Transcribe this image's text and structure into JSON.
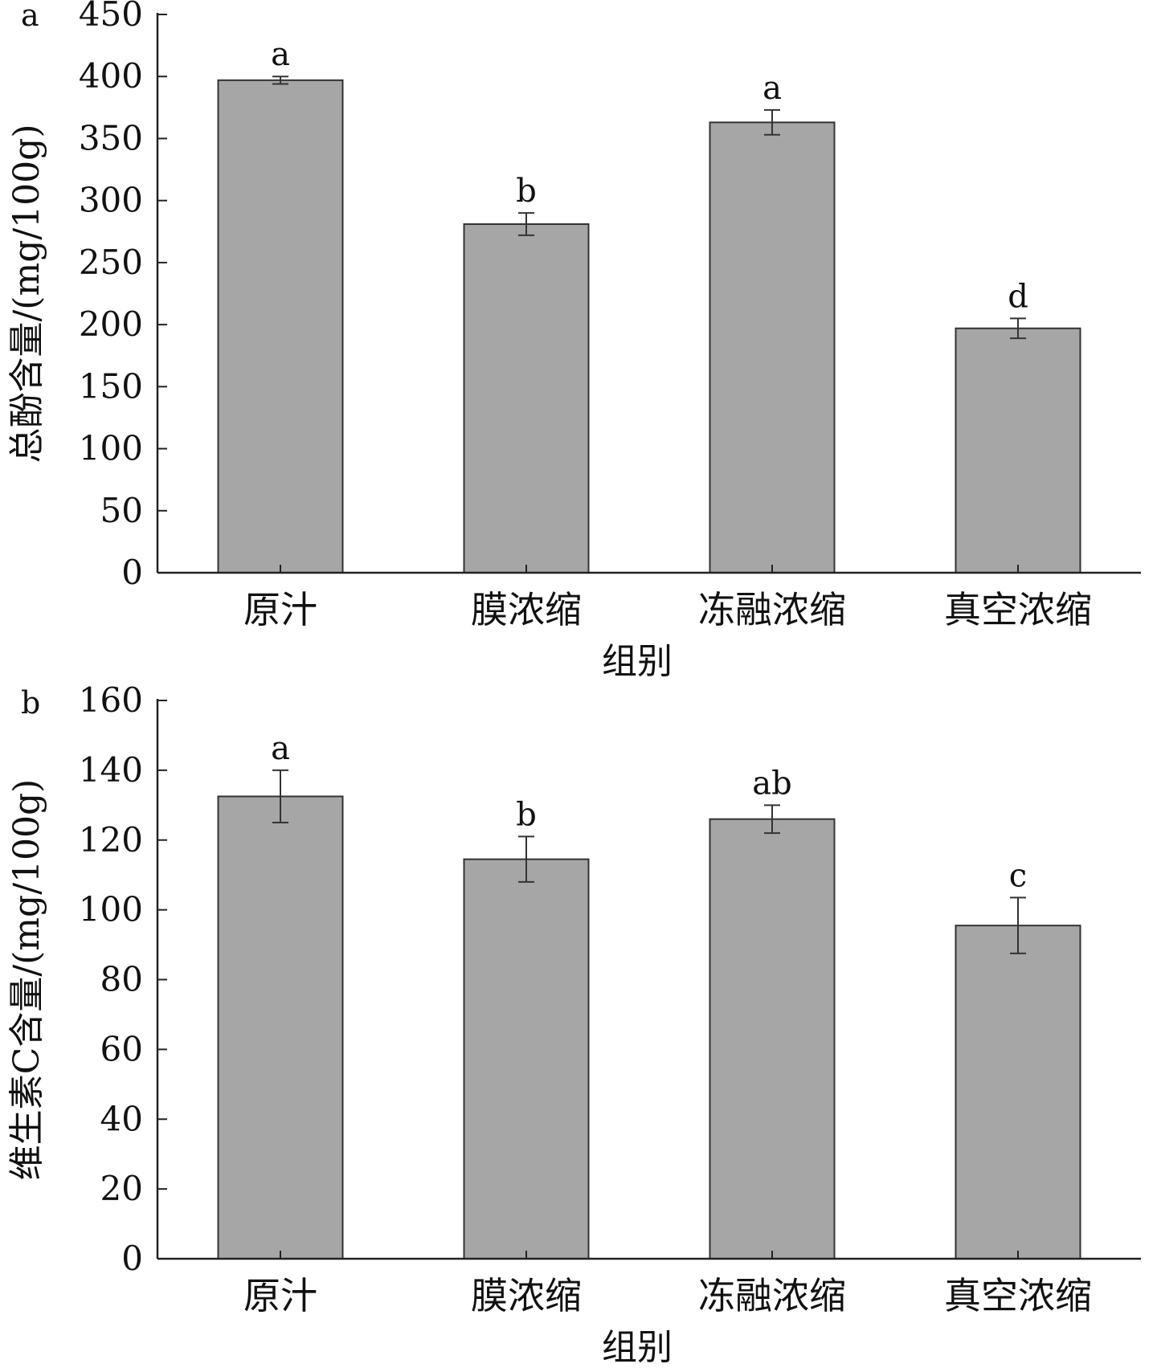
{
  "figure": {
    "bar_color": "#a6a6a6",
    "bar_edge_color": "#333333",
    "axis_color": "#222222"
  },
  "chart_data": [
    {
      "panel_label": "a",
      "type": "bar",
      "categories": [
        "原汁",
        "膜浓缩",
        "冻融浓缩",
        "真空浓缩"
      ],
      "values": [
        397,
        281,
        363,
        197
      ],
      "errors": [
        3,
        9,
        10,
        8
      ],
      "significance": [
        "a",
        "b",
        "a",
        "d"
      ],
      "title": "",
      "xlabel": "组别",
      "ylabel": "总酚含量/(mg/100g)",
      "ylim": [
        0,
        450
      ],
      "yticks": [
        0,
        50,
        100,
        150,
        200,
        250,
        300,
        350,
        400,
        450
      ],
      "grid": false,
      "legend": "none"
    },
    {
      "panel_label": "b",
      "type": "bar",
      "categories": [
        "原汁",
        "膜浓缩",
        "冻融浓缩",
        "真空浓缩"
      ],
      "values": [
        132.5,
        114.5,
        126,
        95.5
      ],
      "errors": [
        7.5,
        6.5,
        4,
        8
      ],
      "significance": [
        "a",
        "b",
        "ab",
        "c"
      ],
      "title": "",
      "xlabel": "组别",
      "ylabel": "维生素C含量/(mg/100g)",
      "ylim": [
        0,
        160
      ],
      "yticks": [
        0,
        20,
        40,
        60,
        80,
        100,
        120,
        140,
        160
      ],
      "grid": false,
      "legend": "none"
    }
  ]
}
